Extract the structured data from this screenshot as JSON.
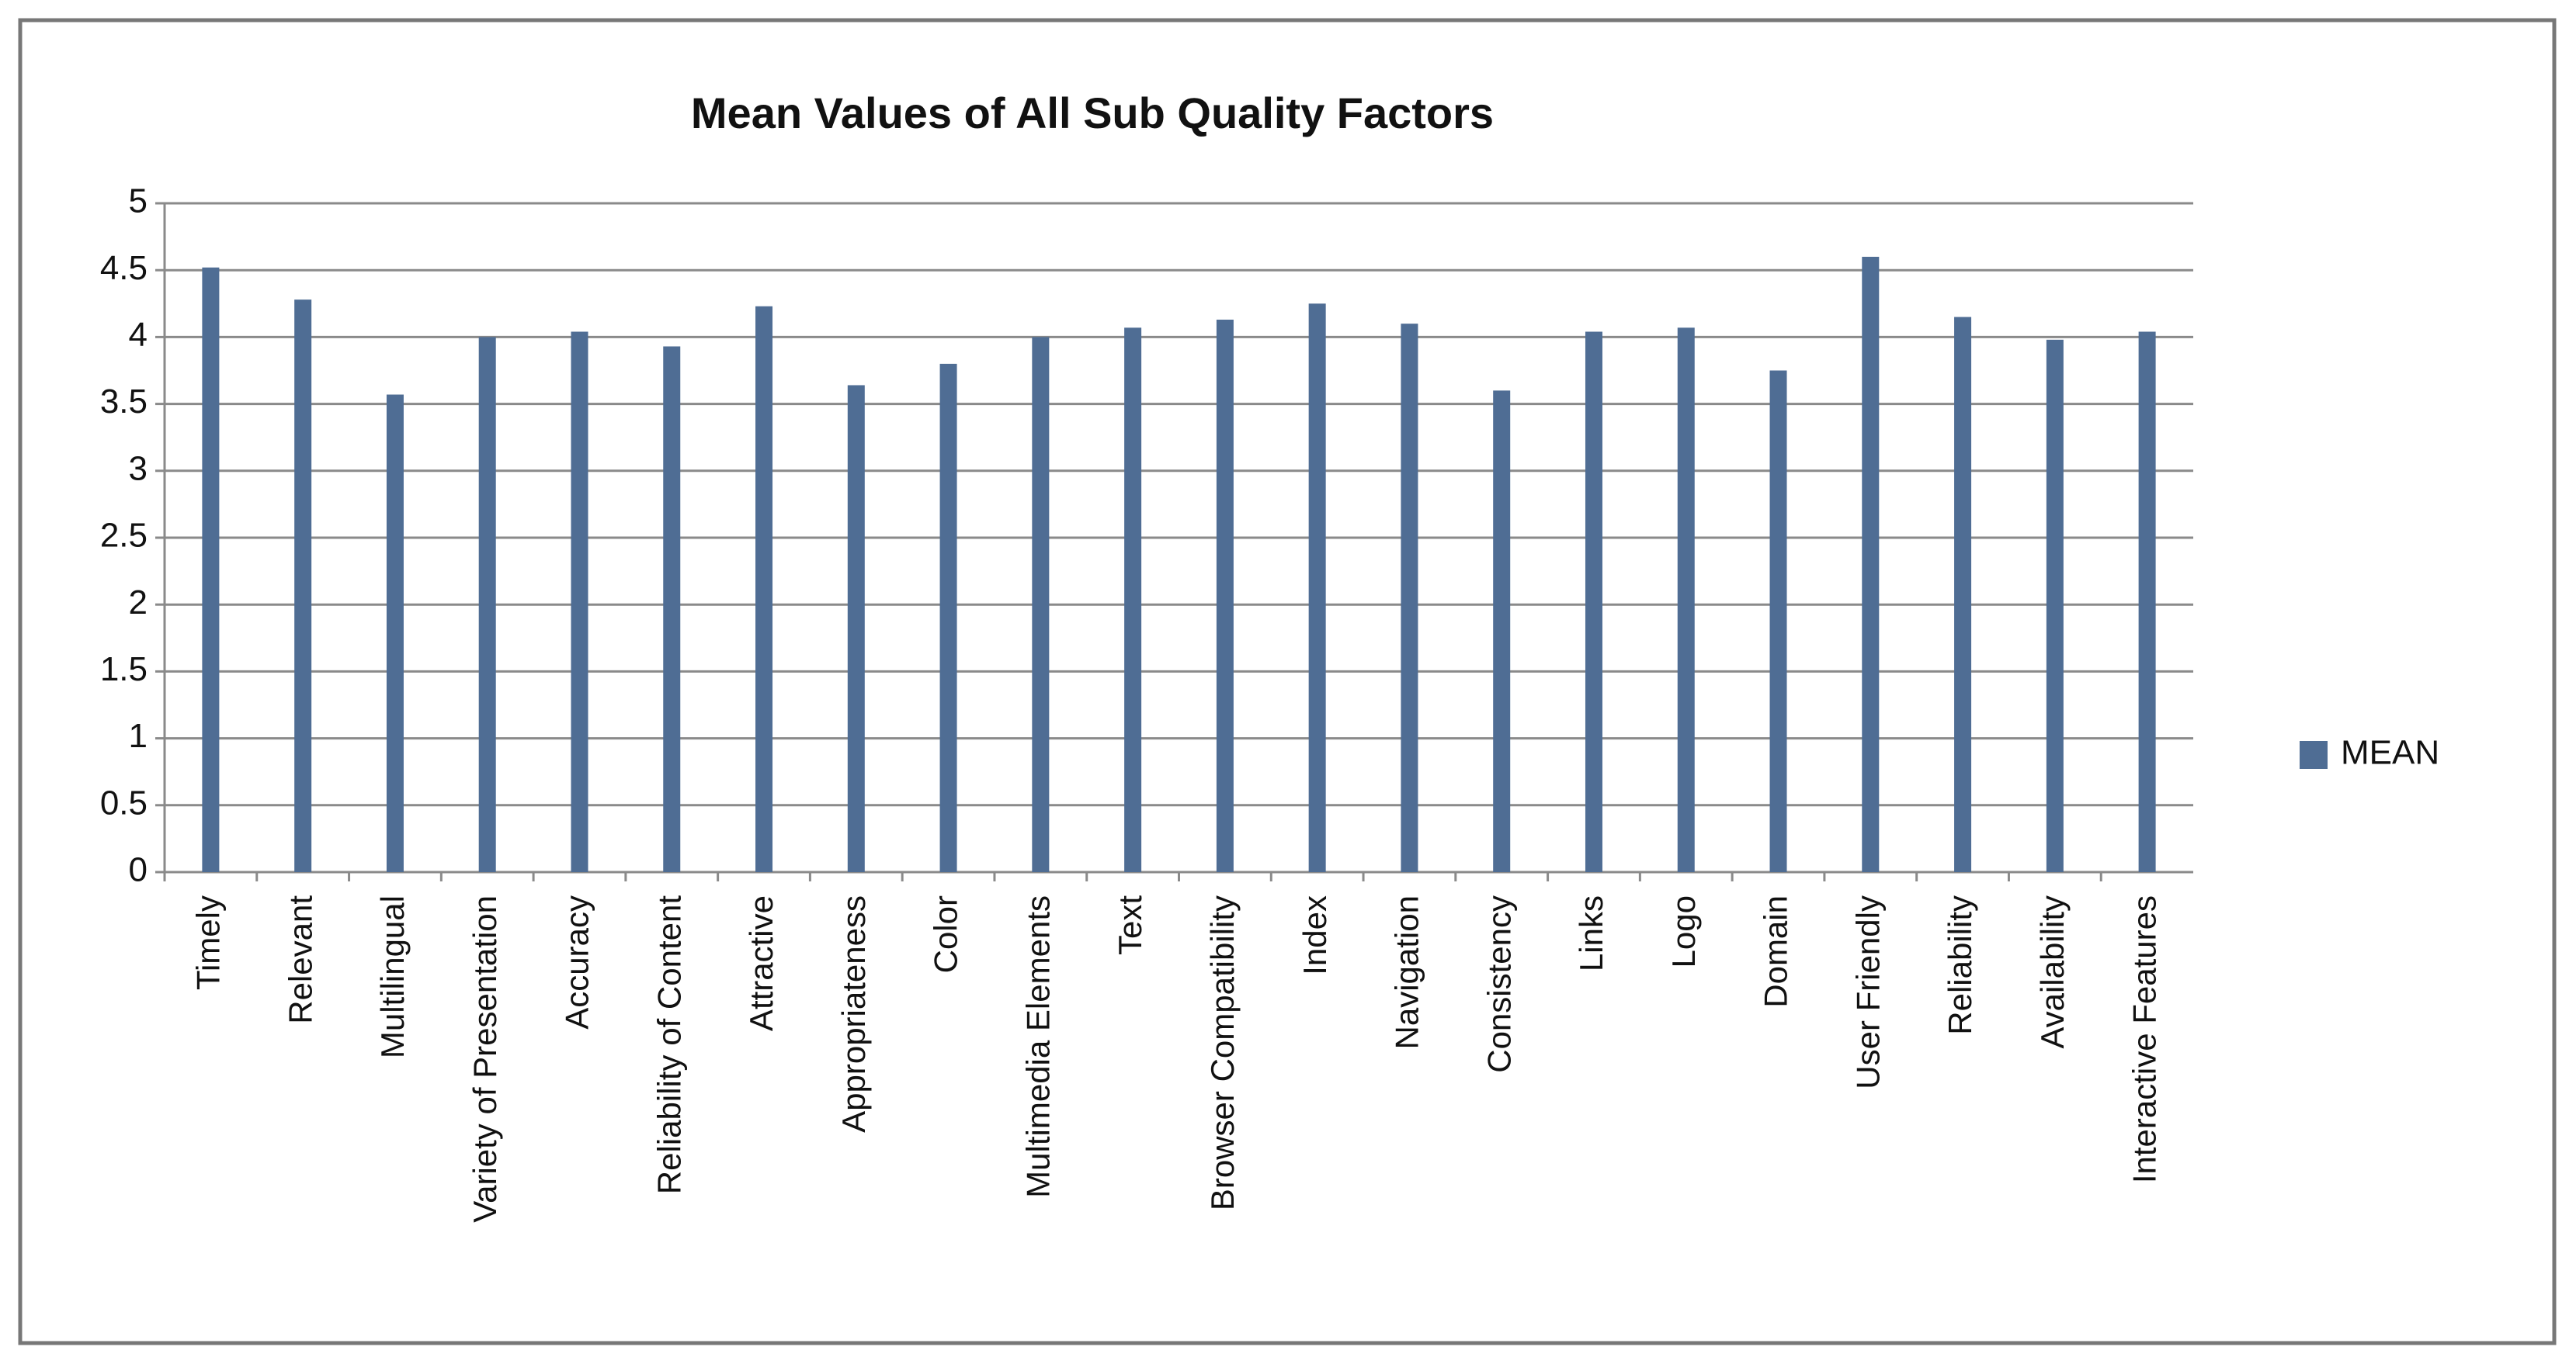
{
  "chart_data": {
    "type": "bar",
    "title": "Mean Values of All Sub Quality Factors",
    "categories": [
      "Timely",
      "Relevant",
      "Multilingual",
      "Variety of Presentation",
      "Accuracy",
      "Reliability of Content",
      "Attractive",
      "Appropriateness",
      "Color",
      "Multimedia Elements",
      "Text",
      "Browser Compatibility",
      "Index",
      "Navigation",
      "Consistency",
      "Links",
      "Logo",
      "Domain",
      "User Friendly",
      "Reliability",
      "Availability",
      "Interactive Features"
    ],
    "series": [
      {
        "name": "MEAN",
        "color": "#4f6d94",
        "values": [
          4.52,
          4.28,
          3.57,
          4.0,
          4.04,
          3.93,
          4.23,
          3.64,
          3.8,
          4.0,
          4.07,
          4.13,
          4.25,
          4.1,
          3.6,
          4.04,
          4.07,
          3.75,
          4.6,
          4.15,
          3.98,
          4.04
        ]
      }
    ],
    "ylim": [
      0,
      5
    ],
    "yticks": [
      0,
      0.5,
      1,
      1.5,
      2,
      2.5,
      3,
      3.5,
      4,
      4.5,
      5
    ],
    "grid": true,
    "legend": "right"
  }
}
